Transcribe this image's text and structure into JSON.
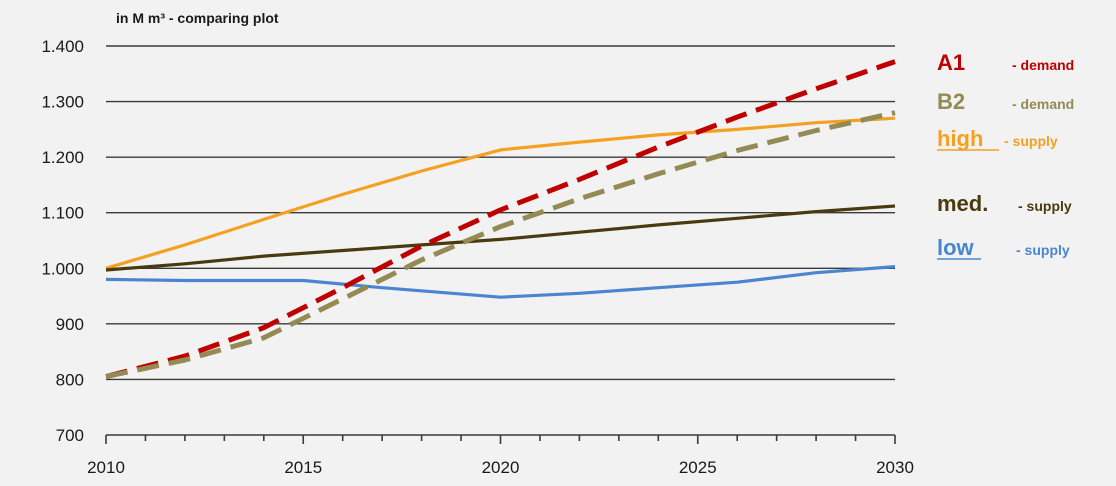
{
  "chart_data": {
    "type": "line",
    "title": "in M m³ - comparing plot",
    "xlim": [
      2010,
      2030
    ],
    "ylim": [
      700,
      1400
    ],
    "x_ticks": [
      2010,
      2015,
      2020,
      2025,
      2030
    ],
    "y_ticks": [
      700,
      800,
      900,
      1000,
      1100,
      1200,
      1300,
      1400
    ],
    "y_tick_labels": [
      "700",
      "800",
      "900",
      "1.000",
      "1.100",
      "1.200",
      "1.300",
      "1.400"
    ],
    "grid": true,
    "legend_position": "right",
    "series": [
      {
        "name": "A1",
        "description": "- demand",
        "color": "#c00000",
        "dashed": true,
        "x": [
          2010,
          2012,
          2014,
          2016,
          2018,
          2020,
          2022,
          2024,
          2026,
          2028,
          2030
        ],
        "y": [
          805,
          842,
          893,
          965,
          1040,
          1105,
          1160,
          1218,
          1272,
          1323,
          1372
        ]
      },
      {
        "name": "B2",
        "description": "- demand",
        "color": "#948a54",
        "dashed": true,
        "x": [
          2010,
          2012,
          2014,
          2016,
          2018,
          2020,
          2022,
          2024,
          2026,
          2028,
          2030
        ],
        "y": [
          805,
          835,
          875,
          945,
          1015,
          1075,
          1125,
          1170,
          1212,
          1248,
          1280
        ]
      },
      {
        "name": "high",
        "description": "- supply",
        "color": "#f4a020",
        "dashed": false,
        "x": [
          2010,
          2012,
          2014,
          2016,
          2018,
          2020,
          2022,
          2024,
          2026,
          2028,
          2030
        ],
        "y": [
          1000,
          1042,
          1088,
          1133,
          1175,
          1213,
          1227,
          1240,
          1250,
          1262,
          1270
        ]
      },
      {
        "name": "med.",
        "description": "- supply",
        "color": "#4a3a10",
        "dashed": false,
        "x": [
          2010,
          2012,
          2014,
          2016,
          2018,
          2020,
          2022,
          2024,
          2026,
          2028,
          2030
        ],
        "y": [
          997,
          1008,
          1022,
          1032,
          1042,
          1052,
          1065,
          1078,
          1090,
          1102,
          1112
        ]
      },
      {
        "name": "low",
        "description": "- supply",
        "color": "#4a86d0",
        "dashed": false,
        "x": [
          2010,
          2012,
          2014,
          2015,
          2017,
          2020,
          2022,
          2024,
          2026,
          2028,
          2030
        ],
        "y": [
          980,
          978,
          978,
          978,
          965,
          948,
          955,
          965,
          975,
          992,
          1003
        ]
      }
    ]
  }
}
